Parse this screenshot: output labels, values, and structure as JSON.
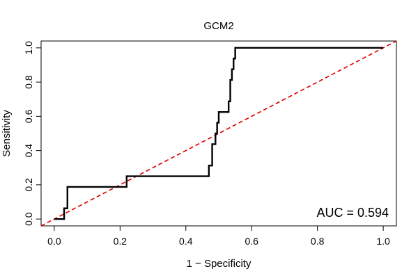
{
  "chart_data": {
    "type": "line",
    "title": "GCM2",
    "xlabel": "1 − Specificity",
    "ylabel": "Sensitivity",
    "xlim": [
      -0.04,
      1.04
    ],
    "ylim": [
      -0.04,
      1.04
    ],
    "xticks": [
      0.0,
      0.2,
      0.4,
      0.6,
      0.8,
      1.0
    ],
    "xtick_labels": [
      "0.0",
      "0.2",
      "0.4",
      "0.6",
      "0.8",
      "1.0"
    ],
    "yticks": [
      0.0,
      0.2,
      0.4,
      0.6,
      0.8,
      1.0
    ],
    "ytick_labels": [
      "0.0",
      "0.2",
      "0.4",
      "0.6",
      "0.8",
      "1.0"
    ],
    "grid": false,
    "annotation": "AUC = 0.594",
    "series": [
      {
        "color": "#000000",
        "style": "solid",
        "x": [
          0.0,
          0.03,
          0.03,
          0.04,
          0.04,
          0.22,
          0.22,
          0.47,
          0.47,
          0.48,
          0.48,
          0.49,
          0.49,
          0.495,
          0.495,
          0.5,
          0.5,
          0.53,
          0.53,
          0.535,
          0.535,
          0.54,
          0.54,
          0.545,
          0.545,
          0.55,
          0.55,
          1.0
        ],
        "y": [
          0.0,
          0.0,
          0.0625,
          0.0625,
          0.1875,
          0.1875,
          0.25,
          0.25,
          0.3125,
          0.3125,
          0.4375,
          0.4375,
          0.5,
          0.5,
          0.5625,
          0.5625,
          0.625,
          0.625,
          0.6875,
          0.6875,
          0.8125,
          0.8125,
          0.875,
          0.875,
          0.9375,
          0.9375,
          1.0,
          1.0
        ]
      },
      {
        "color": "#dd0000",
        "style": "dashed",
        "x": [
          -0.04,
          1.04
        ],
        "y": [
          -0.04,
          1.04
        ]
      }
    ]
  }
}
